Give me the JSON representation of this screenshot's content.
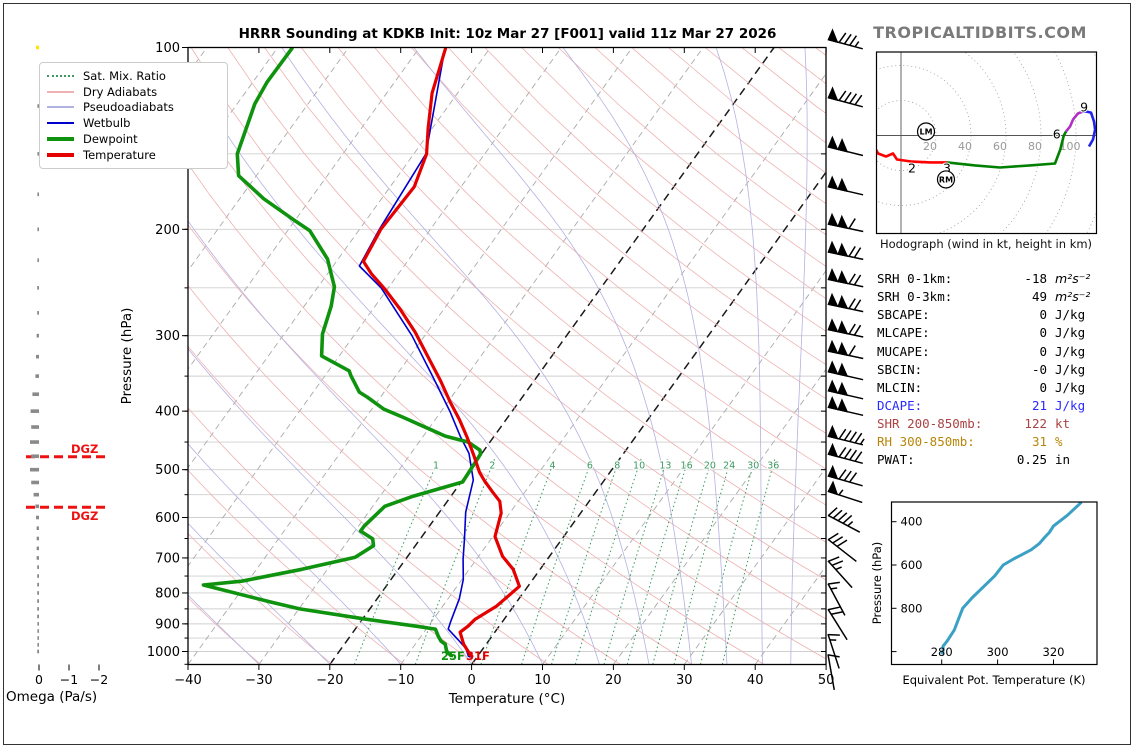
{
  "header": {
    "title": "HRRR Sounding at KDKB Init: 10z Mar 27 [F001] valid 11z Mar 27 2026",
    "watermark": "TROPICALTIDBITS.COM"
  },
  "legend": [
    {
      "label": "Sat. Mix. Ratio",
      "color": "#3c9960",
      "style": "dotted",
      "width": 2
    },
    {
      "label": "Dry Adiabats",
      "color": "#efb2b2",
      "style": "solid",
      "width": 2
    },
    {
      "label": "Pseudoadiabats",
      "color": "#b2b2e2",
      "style": "solid",
      "width": 2
    },
    {
      "label": "Wetbulb",
      "color": "#0000cd",
      "style": "solid",
      "width": 2
    },
    {
      "label": "Dewpoint",
      "color": "#0f930f",
      "style": "solid",
      "width": 4
    },
    {
      "label": "Temperature",
      "color": "#e50000",
      "style": "solid",
      "width": 4
    }
  ],
  "indices": {
    "rows": [
      {
        "label": "SRH 0-1km:",
        "value": "-18",
        "unit": "m²s⁻²",
        "color": "#000000",
        "unit_style": "math"
      },
      {
        "label": "SRH 0-3km:",
        "value": "49",
        "unit": "m²s⁻²",
        "color": "#000000",
        "unit_style": "math"
      },
      {
        "label": "SBCAPE:",
        "value": "0",
        "unit": "J/kg",
        "color": "#000000"
      },
      {
        "label": "MLCAPE:",
        "value": "0",
        "unit": "J/kg",
        "color": "#000000"
      },
      {
        "label": "MUCAPE:",
        "value": "0",
        "unit": "J/kg",
        "color": "#000000"
      },
      {
        "label": "SBCIN:",
        "value": "-0",
        "unit": "J/kg",
        "color": "#000000"
      },
      {
        "label": "MLCIN:",
        "value": "0",
        "unit": "J/kg",
        "color": "#000000"
      },
      {
        "label": "DCAPE:",
        "value": "21",
        "unit": "J/kg",
        "color": "#2a2aff"
      },
      {
        "label": "SHR 200-850mb:",
        "value": "122",
        "unit": "kt",
        "color": "#aa4444"
      },
      {
        "label": "RH 300-850mb:",
        "value": "31",
        "unit": "%",
        "color": "#b8860b"
      },
      {
        "label": "PWAT:",
        "value": "0.25",
        "unit": "in",
        "color": "#000000"
      }
    ]
  },
  "chart_data": [
    {
      "id": "skewt",
      "type": "line",
      "xlabel": "Temperature (°C)",
      "ylabel": "Pressure (hPa)",
      "xlim": [
        -40,
        50
      ],
      "plim": [
        100,
        1050
      ],
      "t_ticks": [
        -40,
        -30,
        -20,
        -10,
        0,
        10,
        20,
        30,
        40,
        50
      ],
      "p_ticks": [
        100,
        200,
        300,
        400,
        500,
        600,
        700,
        800,
        900,
        1000
      ],
      "isotherm_step": 10,
      "bold_isotherms": [
        0,
        -20
      ],
      "mix_ratio_values": [
        1,
        2,
        4,
        6,
        8,
        10,
        13,
        16,
        20,
        24,
        30,
        36
      ],
      "dgz": {
        "label": "DGZ",
        "pressures": [
          476,
          577
        ]
      },
      "surface_labels": [
        {
          "text": "25F",
          "color": "#0f930f"
        },
        {
          "text": "31F",
          "color": "#e50000"
        }
      ],
      "series": [
        {
          "name": "Temperature",
          "color": "#e50000",
          "width": 3.2,
          "points": [
            [
              100,
              -66.3
            ],
            [
              119,
              -63.6
            ],
            [
              136,
              -60.6
            ],
            [
              150,
              -58.2
            ],
            [
              170,
              -56.6
            ],
            [
              200,
              -57.0
            ],
            [
              226,
              -56.2
            ],
            [
              237,
              -53.8
            ],
            [
              251,
              -50.4
            ],
            [
              271,
              -46.2
            ],
            [
              296,
              -41.7
            ],
            [
              328,
              -37.0
            ],
            [
              357,
              -33.1
            ],
            [
              387,
              -29.6
            ],
            [
              413,
              -26.6
            ],
            [
              442,
              -23.7
            ],
            [
              475,
              -20.8
            ],
            [
              505,
              -18.4
            ],
            [
              522,
              -16.8
            ],
            [
              545,
              -14.5
            ],
            [
              564,
              -12.6
            ],
            [
              590,
              -11.2
            ],
            [
              645,
              -9.7
            ],
            [
              696,
              -6.6
            ],
            [
              731,
              -3.8
            ],
            [
              780,
              -1.2
            ],
            [
              841,
              -2.4
            ],
            [
              884,
              -4.1
            ],
            [
              908,
              -4.4
            ],
            [
              929,
              -4.9
            ],
            [
              972,
              -3.2
            ],
            [
              1002,
              -1.7
            ],
            [
              1022,
              -0.6
            ]
          ]
        },
        {
          "name": "Dewpoint",
          "color": "#0f930f",
          "width": 3.6,
          "points": [
            [
              100,
              -87.9
            ],
            [
              114,
              -88.0
            ],
            [
              124,
              -87.5
            ],
            [
              150,
              -84.9
            ],
            [
              163,
              -82.5
            ],
            [
              178,
              -76.6
            ],
            [
              194,
              -69.8
            ],
            [
              201,
              -66.9
            ],
            [
              224,
              -61.5
            ],
            [
              249,
              -57.7
            ],
            [
              268,
              -56.2
            ],
            [
              298,
              -54.6
            ],
            [
              324,
              -52.5
            ],
            [
              343,
              -47.1
            ],
            [
              349,
              -46.4
            ],
            [
              372,
              -43.5
            ],
            [
              379,
              -41.9
            ],
            [
              397,
              -38.3
            ],
            [
              409,
              -34.9
            ],
            [
              423,
              -31.2
            ],
            [
              440,
              -26.9
            ],
            [
              450,
              -23.1
            ],
            [
              464,
              -20.6
            ],
            [
              471,
              -20.1
            ],
            [
              524,
              -19.8
            ],
            [
              553,
              -25.3
            ],
            [
              575,
              -28.3
            ],
            [
              620,
              -29.2
            ],
            [
              632,
              -29.2
            ],
            [
              651,
              -26.7
            ],
            [
              668,
              -25.9
            ],
            [
              698,
              -27.3
            ],
            [
              731,
              -33.6
            ],
            [
              765,
              -40.9
            ],
            [
              776,
              -45.9
            ],
            [
              828,
              -34.7
            ],
            [
              850,
              -29.9
            ],
            [
              884,
              -19.5
            ],
            [
              908,
              -11.7
            ],
            [
              918,
              -8.7
            ],
            [
              943,
              -7.6
            ],
            [
              961,
              -6.7
            ],
            [
              972,
              -5.8
            ],
            [
              998,
              -4.9
            ],
            [
              1018,
              -3.7
            ],
            [
              1022,
              -3.6
            ]
          ]
        },
        {
          "name": "Wetbulb",
          "color": "#0000cd",
          "width": 1.6,
          "points": [
            [
              100,
              -66.4
            ],
            [
              150,
              -58.3
            ],
            [
              200,
              -57.2
            ],
            [
              230,
              -56.3
            ],
            [
              250,
              -51.0
            ],
            [
              300,
              -41.8
            ],
            [
              350,
              -34.8
            ],
            [
              400,
              -28.8
            ],
            [
              440,
              -24.8
            ],
            [
              470,
              -21.8
            ],
            [
              520,
              -18.5
            ],
            [
              588,
              -16.3
            ],
            [
              650,
              -13.8
            ],
            [
              703,
              -11.9
            ],
            [
              760,
              -9.8
            ],
            [
              818,
              -8.4
            ],
            [
              893,
              -7.3
            ],
            [
              918,
              -6.9
            ],
            [
              955,
              -4.5
            ],
            [
              989,
              -2.4
            ],
            [
              1018,
              -1.3
            ],
            [
              1022,
              -0.9
            ]
          ]
        }
      ],
      "wind_barbs_kt": [
        [
          97,
          85,
          15
        ],
        [
          121,
          90,
          15
        ],
        [
          146,
          100,
          14
        ],
        [
          170,
          100,
          13
        ],
        [
          196,
          110,
          12
        ],
        [
          218,
          120,
          12
        ],
        [
          242,
          120,
          12
        ],
        [
          266,
          120,
          12
        ],
        [
          293,
          120,
          12
        ],
        [
          318,
          110,
          12
        ],
        [
          344,
          100,
          13
        ],
        [
          370,
          100,
          13
        ],
        [
          394,
          100,
          13
        ],
        [
          440,
          95,
          14
        ],
        [
          471,
          90,
          15
        ],
        [
          512,
          80,
          16
        ],
        [
          543,
          55,
          18
        ],
        [
          595,
          45,
          28
        ],
        [
          652,
          30,
          38
        ],
        [
          708,
          25,
          48
        ],
        [
          772,
          15,
          62
        ],
        [
          851,
          20,
          58
        ],
        [
          936,
          15,
          72
        ],
        [
          1011,
          10,
          80
        ]
      ]
    },
    {
      "id": "hodograph",
      "type": "line",
      "caption": "Hodograph (wind in kt, height in km)",
      "ring_step_kt": 20,
      "ring_labels": [
        20,
        40,
        60,
        80,
        100
      ],
      "segments": [
        {
          "layer": "0-3 km",
          "color": "#ff0000",
          "points": [
            [
              -14.9,
              -6.9
            ],
            [
              -13.1,
              -10.3
            ],
            [
              -8.6,
              -12.0
            ],
            [
              -4.6,
              -10.3
            ],
            [
              -2.3,
              -13.7
            ],
            [
              6.3,
              -14.9
            ],
            [
              16.6,
              -15.4
            ],
            [
              26.3,
              -15.4
            ]
          ]
        },
        {
          "layer": "3-6 km",
          "color": "#008000",
          "points": [
            [
              26.3,
              -15.4
            ],
            [
              42.3,
              -17.1
            ],
            [
              56.6,
              -18.3
            ],
            [
              73.7,
              -17.1
            ],
            [
              88.0,
              -16.0
            ],
            [
              91.0,
              -8.0
            ],
            [
              93.0,
              0.0
            ],
            [
              94.3,
              2.3
            ]
          ]
        },
        {
          "layer": "6-9 km",
          "color": "#b030c0",
          "points": [
            [
              94.3,
              2.3
            ],
            [
              96.6,
              5.1
            ],
            [
              98.3,
              9.1
            ],
            [
              101.1,
              12.6
            ],
            [
              104.0,
              13.7
            ]
          ]
        },
        {
          "layer": "9+ km",
          "color": "#2222ee",
          "points": [
            [
              104.0,
              13.7
            ],
            [
              105.7,
              13.7
            ],
            [
              108.6,
              13.1
            ],
            [
              110.3,
              8.0
            ],
            [
              110.9,
              3.4
            ],
            [
              109.7,
              -2.3
            ],
            [
              107.4,
              -6.3
            ]
          ]
        }
      ],
      "height_labels": [
        {
          "text": "1",
          "u": -17.7,
          "v": -5.7
        },
        {
          "text": "2",
          "u": 6.3,
          "v": -18.9
        },
        {
          "text": "3",
          "u": 26.3,
          "v": -18.9
        },
        {
          "text": "6",
          "u": 89.0,
          "v": 0.6
        },
        {
          "text": "9",
          "u": 104.6,
          "v": 16.0
        }
      ],
      "storm_motions": [
        {
          "text": "LM",
          "u": 14.3,
          "v": 2.3
        },
        {
          "text": "RM",
          "u": 25.7,
          "v": -25.1
        }
      ]
    },
    {
      "id": "theta_e",
      "type": "line",
      "xlabel": "Equivalent Pot. Temperature (K)",
      "ylabel": "Pressure (hPa)",
      "x_ticks": [
        280,
        300,
        320
      ],
      "p_ticks": [
        400,
        600,
        800
      ],
      "color": "#3aa0c4",
      "points": [
        [
          1013,
          280
        ],
        [
          995,
          280.5
        ],
        [
          975,
          280.5
        ],
        [
          950,
          282
        ],
        [
          900,
          284.5
        ],
        [
          850,
          286
        ],
        [
          800,
          287.5
        ],
        [
          750,
          291
        ],
        [
          700,
          295
        ],
        [
          650,
          299
        ],
        [
          600,
          302
        ],
        [
          570,
          306
        ],
        [
          550,
          309
        ],
        [
          530,
          312
        ],
        [
          500,
          315
        ],
        [
          470,
          317
        ],
        [
          450,
          318.5
        ],
        [
          420,
          320
        ],
        [
          400,
          322
        ],
        [
          370,
          325
        ],
        [
          340,
          327.5
        ],
        [
          310,
          330
        ]
      ]
    },
    {
      "id": "omega",
      "type": "bar",
      "label": "Omega (Pa/s)",
      "ticks": [
        0,
        -1,
        -2
      ],
      "bar_color": "#8a8a8a",
      "top_bar_color": "#ffe600",
      "bars": [
        [
          100,
          0.1
        ],
        [
          125,
          0.03
        ],
        [
          150,
          0.03
        ],
        [
          175,
          0.04
        ],
        [
          200,
          0.04
        ],
        [
          225,
          0.05
        ],
        [
          250,
          0.06
        ],
        [
          275,
          0.06
        ],
        [
          300,
          0.08
        ],
        [
          325,
          0.1
        ],
        [
          350,
          0.12
        ],
        [
          375,
          0.22
        ],
        [
          400,
          0.28
        ],
        [
          425,
          0.26
        ],
        [
          450,
          0.3
        ],
        [
          475,
          0.26
        ],
        [
          500,
          0.3
        ],
        [
          525,
          0.26
        ],
        [
          550,
          0.18
        ],
        [
          575,
          0.12
        ],
        [
          600,
          0.1
        ],
        [
          625,
          0.08
        ],
        [
          650,
          0.08
        ],
        [
          675,
          0.08
        ],
        [
          700,
          0.08
        ],
        [
          725,
          0.06
        ],
        [
          750,
          0.06
        ],
        [
          775,
          0.06
        ],
        [
          800,
          0.06
        ],
        [
          825,
          0.06
        ],
        [
          850,
          0.06
        ],
        [
          875,
          0.06
        ],
        [
          900,
          0.05
        ],
        [
          925,
          0.05
        ],
        [
          950,
          0.05
        ],
        [
          975,
          0.04
        ],
        [
          1000,
          0.06
        ]
      ]
    }
  ]
}
